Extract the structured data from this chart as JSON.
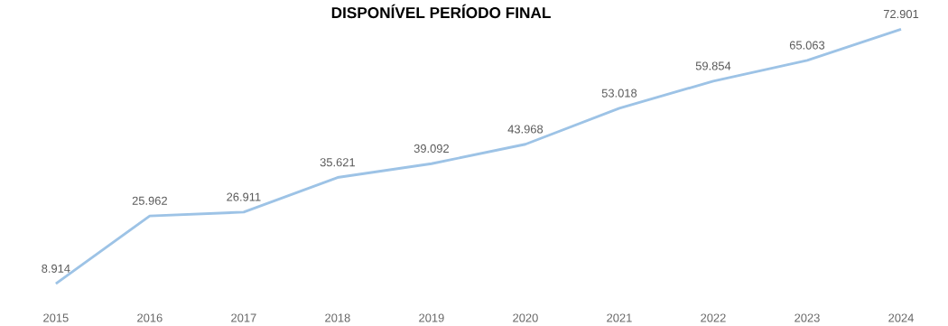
{
  "chart_data": {
    "type": "line",
    "title": "DISPONÍVEL PERÍODO FINAL",
    "categories": [
      "2015",
      "2016",
      "2017",
      "2018",
      "2019",
      "2020",
      "2021",
      "2022",
      "2023",
      "2024"
    ],
    "series": [
      {
        "color": "#9dc3e6",
        "values": [
          8.914,
          25.962,
          26.911,
          35.621,
          39.092,
          43.968,
          53.018,
          59.854,
          65.063,
          72.901
        ]
      }
    ],
    "data_labels": true,
    "tick_labels": "x",
    "grid": false,
    "legend": false,
    "marker": "none",
    "line_style": "solid"
  }
}
